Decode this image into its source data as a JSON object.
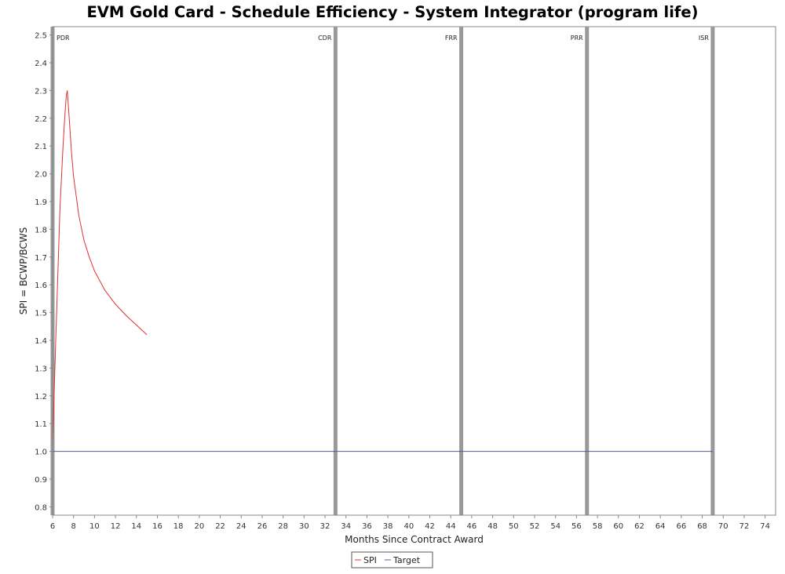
{
  "chart_data": {
    "type": "line",
    "title": "EVM Gold Card - Schedule Efficiency - System Integrator (program life)",
    "xlabel": "Months Since Contract Award",
    "ylabel": "SPI = BCWP/BCWS",
    "xlim": [
      6,
      75
    ],
    "ylim": [
      0.77,
      2.53
    ],
    "x_ticks": [
      6,
      8,
      10,
      12,
      14,
      16,
      18,
      20,
      22,
      24,
      26,
      28,
      30,
      32,
      34,
      36,
      38,
      40,
      42,
      44,
      46,
      48,
      50,
      52,
      54,
      56,
      58,
      60,
      62,
      64,
      66,
      68,
      70,
      72,
      74
    ],
    "y_ticks": [
      "0.8",
      "0.9",
      "1.0",
      "1.1",
      "1.2",
      "1.3",
      "1.4",
      "1.5",
      "1.6",
      "1.7",
      "1.8",
      "1.9",
      "2.0",
      "2.1",
      "2.2",
      "2.3",
      "2.4",
      "2.5"
    ],
    "grid": false,
    "legend_position": "bottom-center",
    "milestones": [
      {
        "label": "PDR",
        "x": 6
      },
      {
        "label": "CDR",
        "x": 33
      },
      {
        "label": "FRR",
        "x": 45
      },
      {
        "label": "PRR",
        "x": 57
      },
      {
        "label": "ISR",
        "x": 69
      }
    ],
    "series": [
      {
        "name": "SPI",
        "color": "#e03030",
        "points": [
          [
            6.0,
            1.02
          ],
          [
            6.3,
            1.4
          ],
          [
            6.7,
            1.87
          ],
          [
            7.0,
            2.1
          ],
          [
            7.15,
            2.2
          ],
          [
            7.3,
            2.28
          ],
          [
            7.4,
            2.3
          ],
          [
            7.55,
            2.22
          ],
          [
            7.8,
            2.08
          ],
          [
            8.0,
            1.99
          ],
          [
            8.5,
            1.85
          ],
          [
            9.0,
            1.76
          ],
          [
            9.5,
            1.7
          ],
          [
            10.0,
            1.65
          ],
          [
            11.0,
            1.58
          ],
          [
            12.0,
            1.53
          ],
          [
            13.0,
            1.49
          ],
          [
            14.0,
            1.455
          ],
          [
            15.0,
            1.42
          ]
        ]
      },
      {
        "name": "Target",
        "color": "#5060a0",
        "points": [
          [
            6,
            1.0
          ],
          [
            69,
            1.0
          ]
        ]
      }
    ]
  }
}
